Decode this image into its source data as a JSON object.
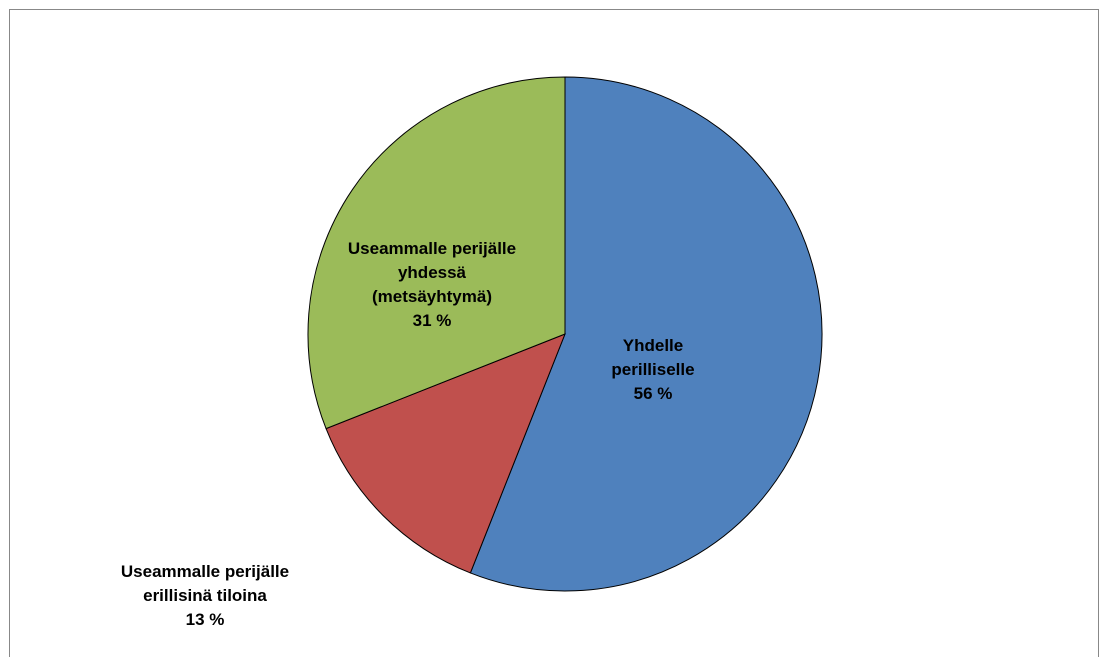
{
  "chart_data": {
    "type": "pie",
    "categories": [
      "Yhdelle perilliselle",
      "Useammalle perijälle erillisinä tiloina",
      "Useammalle perijälle yhdessä (metsäyhtymä)"
    ],
    "values": [
      56,
      13,
      31
    ],
    "value_labels": [
      "56 %",
      "13 %",
      "31 %"
    ],
    "colors": [
      "#4f81bd",
      "#c0504d",
      "#9bbb59"
    ]
  }
}
